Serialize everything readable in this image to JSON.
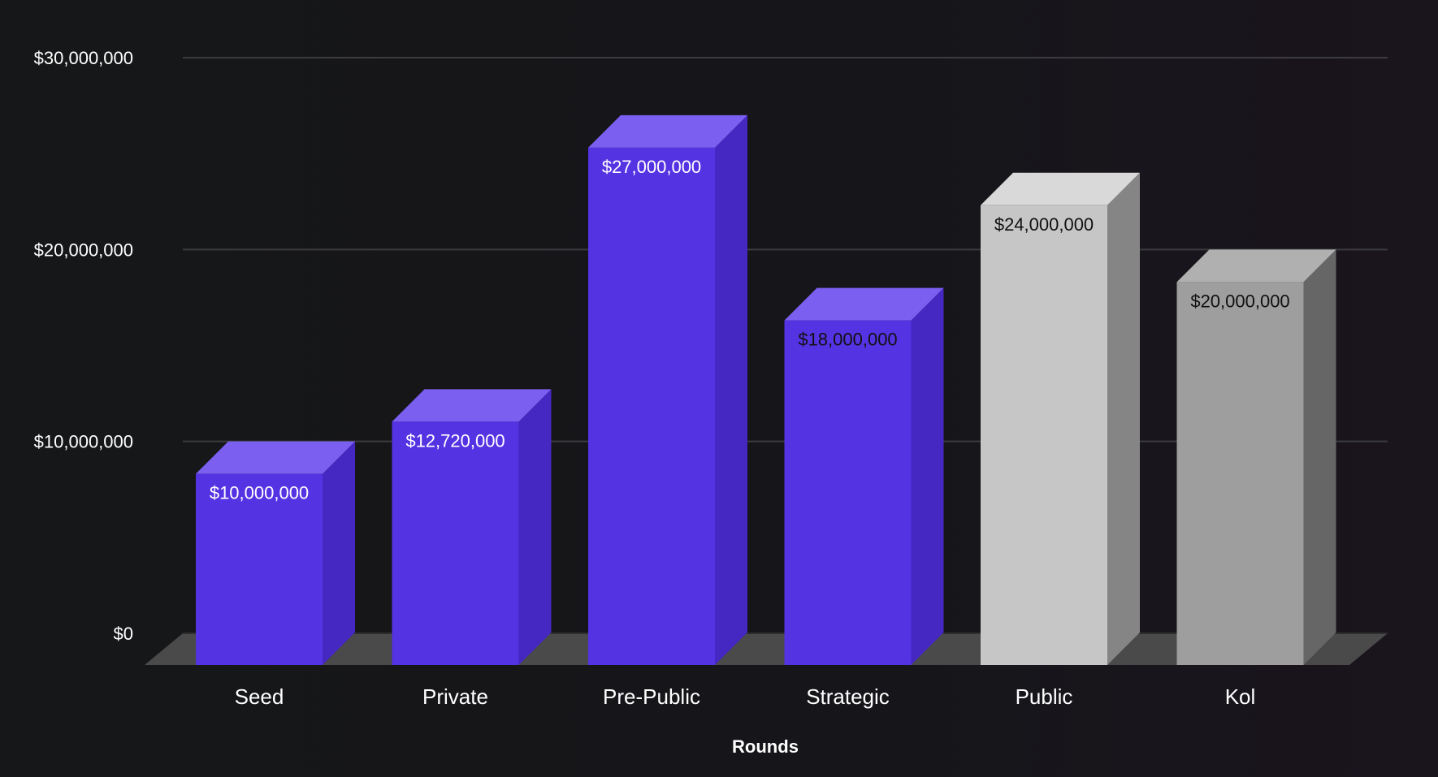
{
  "chart_data": {
    "type": "bar",
    "categories": [
      "Seed",
      "Private",
      "Pre-Public",
      "Strategic",
      "Public",
      "Kol"
    ],
    "values": [
      10000000,
      12720000,
      27000000,
      18000000,
      24000000,
      20000000
    ],
    "data_labels": [
      "$10,000,000",
      "$12,720,000",
      "$27,000,000",
      "$18,000,000",
      "$24,000,000",
      "$20,000,000"
    ],
    "ytick_labels": [
      "$0",
      "$10,000,000",
      "$20,000,000",
      "$30,000,000"
    ],
    "ytick_values": [
      0,
      10000000,
      20000000,
      30000000
    ],
    "xlabel": "Rounds",
    "ylabel": "",
    "title": "",
    "ylim": [
      0,
      30000000
    ],
    "grid": true,
    "style": "3d-bar",
    "colors": {
      "background": "#161718",
      "gridline": "#3c3c40",
      "floor": "#4a4a4a",
      "axis_text": "#ffffff",
      "bars": [
        {
          "front": "#5433e3",
          "top": "#7b5ff0",
          "side": "#4528c2",
          "label": "#ffffff"
        },
        {
          "front": "#5433e3",
          "top": "#7b5ff0",
          "side": "#4528c2",
          "label": "#ffffff"
        },
        {
          "front": "#5433e3",
          "top": "#7b5ff0",
          "side": "#4528c2",
          "label": "#ffffff"
        },
        {
          "front": "#5433e3",
          "top": "#7b5ff0",
          "side": "#4528c2",
          "label": "#111111"
        },
        {
          "front": "#c6c6c6",
          "top": "#d9d9d9",
          "side": "#858585",
          "label": "#111111"
        },
        {
          "front": "#9e9e9e",
          "top": "#b0b0b0",
          "side": "#666666",
          "label": "#111111"
        }
      ]
    }
  }
}
